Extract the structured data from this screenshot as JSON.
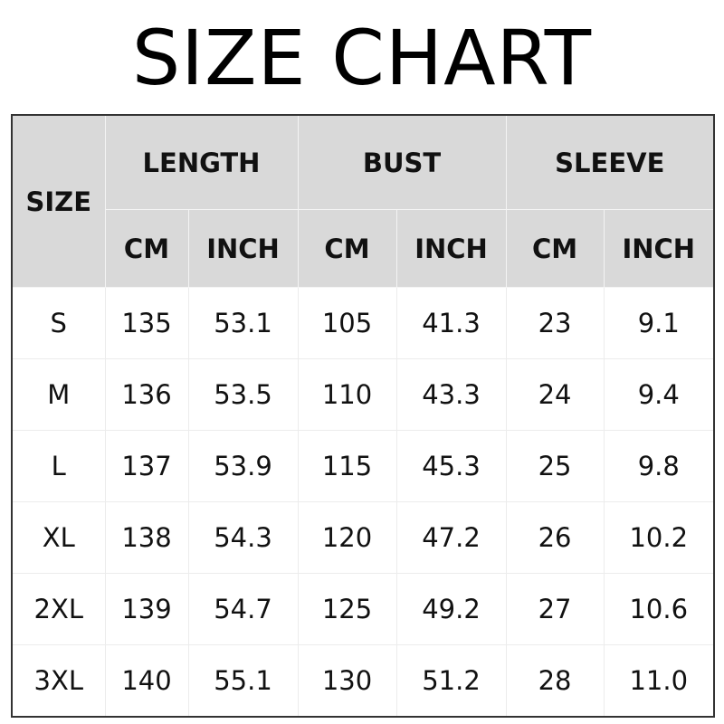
{
  "title": "SIZE CHART",
  "headers": {
    "size": "SIZE",
    "groups": [
      "LENGTH",
      "BUST",
      "SLEEVE"
    ],
    "units": [
      "CM",
      "INCH",
      "CM",
      "INCH",
      "CM",
      "INCH"
    ]
  },
  "rows": [
    [
      "S",
      "135",
      "53.1",
      "105",
      "41.3",
      "23",
      "9.1"
    ],
    [
      "M",
      "136",
      "53.5",
      "110",
      "43.3",
      "24",
      "9.4"
    ],
    [
      "L",
      "137",
      "53.9",
      "115",
      "45.3",
      "25",
      "9.8"
    ],
    [
      "XL",
      "138",
      "54.3",
      "120",
      "47.2",
      "26",
      "10.2"
    ],
    [
      "2XL",
      "139",
      "54.7",
      "125",
      "49.2",
      "27",
      "10.6"
    ],
    [
      "3XL",
      "140",
      "55.1",
      "130",
      "51.2",
      "28",
      "11.0"
    ]
  ],
  "colors": {
    "header_bg": "#d9d9d9",
    "border": "#333333"
  }
}
